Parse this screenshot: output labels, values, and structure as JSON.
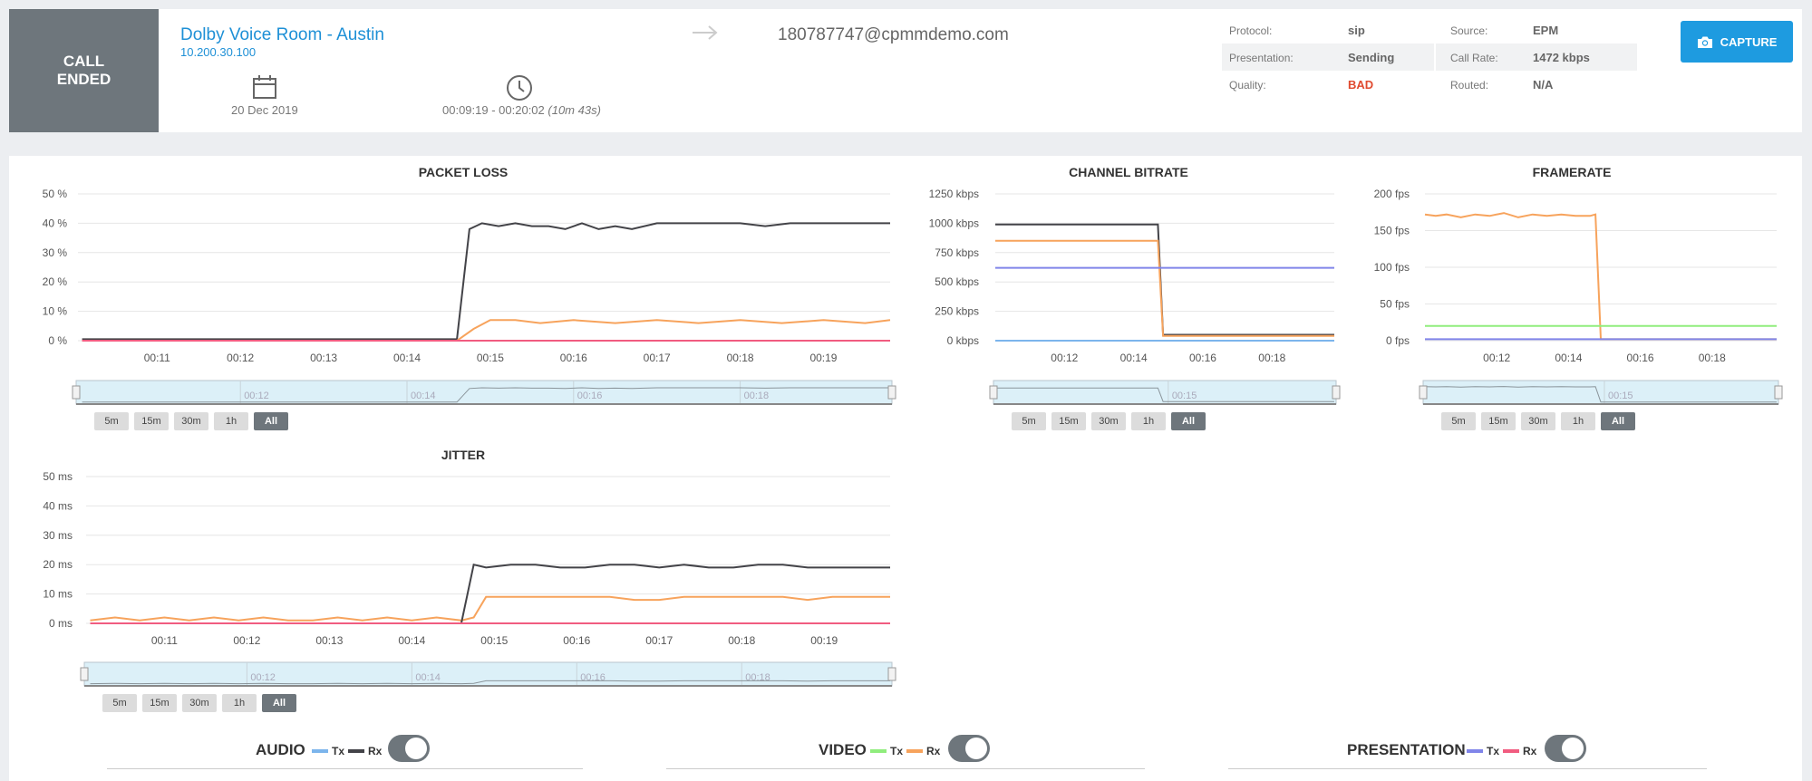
{
  "header": {
    "status_line1": "CALL",
    "status_line2": "ENDED",
    "room_name": "Dolby Voice Room - Austin",
    "room_ip": "10.200.30.100",
    "destination": "180787747@cpmmdemo.com",
    "date": "20 Dec 2019",
    "time_range": "00:09:19 - 00:20:02",
    "duration": "(10m 43s)",
    "capture_label": "CAPTURE"
  },
  "info": {
    "protocol_label": "Protocol:",
    "protocol_value": "sip",
    "source_label": "Source:",
    "source_value": "EPM",
    "presentation_label": "Presentation:",
    "presentation_value": "Sending",
    "callrate_label": "Call Rate:",
    "callrate_value": "1472 kbps",
    "quality_label": "Quality:",
    "quality_value": "BAD",
    "routed_label": "Routed:",
    "routed_value": "N/A"
  },
  "range_buttons": [
    "5m",
    "15m",
    "30m",
    "1h",
    "All"
  ],
  "toggles": {
    "audio": "AUDIO",
    "video": "VIDEO",
    "presentation": "PRESENTATION",
    "tx": "Tx",
    "rx": "Rx"
  },
  "colors": {
    "audio_tx": "#7cb5ec",
    "audio_rx": "#434348",
    "video_tx": "#90ed7d",
    "video_rx": "#f7a35c",
    "pres_tx": "#8085e9",
    "pres_rx": "#f15c80"
  },
  "chart_data": [
    {
      "type": "line",
      "title": "PACKET LOSS",
      "ylim": [
        0,
        50
      ],
      "yticks": [
        "50 %",
        "40 %",
        "30 %",
        "20 %",
        "10 %",
        "0 %"
      ],
      "xticks": [
        "00:11",
        "00:12",
        "00:13",
        "00:14",
        "00:15",
        "00:16",
        "00:17",
        "00:18",
        "00:19"
      ],
      "navigator_ticks": [
        "00:12",
        "00:14",
        "00:16",
        "00:18"
      ],
      "series": [
        {
          "name": "audio_rx",
          "color": "#434348",
          "x": [
            10.1,
            10.5,
            11,
            11.5,
            12,
            12.5,
            13,
            13.5,
            14,
            14.6,
            14.75,
            14.9,
            15.1,
            15.3,
            15.5,
            15.7,
            15.9,
            16.1,
            16.3,
            16.5,
            16.7,
            17,
            17.3,
            17.6,
            18,
            18.3,
            18.6,
            19,
            19.4,
            19.8
          ],
          "values": [
            0.5,
            0.5,
            0.5,
            0.5,
            0.5,
            0.5,
            0.5,
            0.5,
            0.5,
            0.5,
            38,
            40,
            39,
            40,
            39,
            39,
            38,
            40,
            38,
            39,
            38,
            40,
            40,
            40,
            40,
            39,
            40,
            40,
            40,
            40
          ]
        },
        {
          "name": "video_rx",
          "color": "#f7a35c",
          "x": [
            10.1,
            11,
            12,
            13,
            14,
            14.6,
            14.8,
            15,
            15.3,
            15.6,
            16,
            16.5,
            17,
            17.5,
            18,
            18.5,
            19,
            19.5,
            19.8
          ],
          "values": [
            0,
            0,
            0,
            0,
            0,
            0,
            4,
            7,
            7,
            6,
            7,
            6,
            7,
            6,
            7,
            6,
            7,
            6,
            7
          ]
        },
        {
          "name": "pres_rx",
          "color": "#f15c80",
          "x": [
            10.1,
            19.8
          ],
          "values": [
            0,
            0
          ]
        }
      ]
    },
    {
      "type": "line",
      "title": "CHANNEL BITRATE",
      "ylim": [
        0,
        1250
      ],
      "yticks": [
        "1250 kbps",
        "1000 kbps",
        "750 kbps",
        "500 kbps",
        "250 kbps",
        "0 kbps"
      ],
      "xticks": [
        "00:12",
        "00:14",
        "00:16",
        "00:18"
      ],
      "navigator_ticks": [
        "00:15"
      ],
      "series": [
        {
          "name": "audio_rx",
          "color": "#434348",
          "x": [
            10.0,
            14.7,
            14.85,
            19.8
          ],
          "values": [
            990,
            990,
            50,
            50
          ]
        },
        {
          "name": "video_rx",
          "color": "#f7a35c",
          "x": [
            10.0,
            14.7,
            14.85,
            19.8
          ],
          "values": [
            850,
            850,
            40,
            40
          ]
        },
        {
          "name": "pres_tx",
          "color": "#8085e9",
          "x": [
            10.0,
            19.8
          ],
          "values": [
            620,
            620
          ]
        },
        {
          "name": "audio_tx",
          "color": "#7cb5ec",
          "x": [
            10.0,
            19.8
          ],
          "values": [
            0,
            0
          ]
        }
      ]
    },
    {
      "type": "line",
      "title": "FRAMERATE",
      "ylim": [
        0,
        200
      ],
      "yticks": [
        "200 fps",
        "150 fps",
        "100 fps",
        "50 fps",
        "0 fps"
      ],
      "xticks": [
        "00:12",
        "00:14",
        "00:16",
        "00:18"
      ],
      "navigator_ticks": [
        "00:15"
      ],
      "series": [
        {
          "name": "video_rx",
          "color": "#f7a35c",
          "x": [
            10.0,
            10.3,
            10.6,
            11.0,
            11.4,
            11.8,
            12.2,
            12.6,
            13.0,
            13.4,
            13.8,
            14.2,
            14.6,
            14.75,
            14.9,
            19.8
          ],
          "values": [
            172,
            170,
            172,
            168,
            172,
            170,
            174,
            168,
            172,
            170,
            172,
            170,
            170,
            172,
            2,
            2
          ]
        },
        {
          "name": "video_tx",
          "color": "#90ed7d",
          "x": [
            10.0,
            19.8
          ],
          "values": [
            20,
            20
          ]
        },
        {
          "name": "pres_tx",
          "color": "#8085e9",
          "x": [
            10.0,
            19.8
          ],
          "values": [
            2,
            2
          ]
        }
      ]
    },
    {
      "type": "line",
      "title": "JITTER",
      "ylim": [
        0,
        50
      ],
      "yticks": [
        "50 ms",
        "40 ms",
        "30 ms",
        "20 ms",
        "10 ms",
        "0 ms"
      ],
      "xticks": [
        "00:11",
        "00:12",
        "00:13",
        "00:14",
        "00:15",
        "00:16",
        "00:17",
        "00:18",
        "00:19"
      ],
      "navigator_ticks": [
        "00:12",
        "00:14",
        "00:16",
        "00:18"
      ],
      "series": [
        {
          "name": "video_rx",
          "color": "#f7a35c",
          "x": [
            10.1,
            10.4,
            10.7,
            11.0,
            11.3,
            11.6,
            11.9,
            12.2,
            12.5,
            12.8,
            13.1,
            13.4,
            13.7,
            14.0,
            14.3,
            14.6,
            14.75,
            14.9,
            15.2,
            15.5,
            15.8,
            16.1,
            16.4,
            16.7,
            17.0,
            17.3,
            17.6,
            17.9,
            18.2,
            18.5,
            18.8,
            19.1,
            19.4,
            19.8
          ],
          "values": [
            1,
            2,
            1,
            2,
            1,
            2,
            1,
            2,
            1,
            1,
            2,
            1,
            2,
            1,
            2,
            1,
            2,
            9,
            9,
            9,
            9,
            9,
            9,
            8,
            8,
            9,
            9,
            9,
            9,
            9,
            8,
            9,
            9,
            9
          ]
        },
        {
          "name": "audio_rx",
          "color": "#434348",
          "x": [
            10.1,
            11,
            12,
            13,
            14,
            14.6,
            14.75,
            14.9,
            15.2,
            15.5,
            15.8,
            16.1,
            16.4,
            16.7,
            17.0,
            17.3,
            17.6,
            17.9,
            18.2,
            18.5,
            18.8,
            19.1,
            19.4,
            19.8
          ],
          "values": [
            0,
            0,
            0,
            0,
            0,
            0,
            20,
            19,
            20,
            20,
            19,
            19,
            20,
            20,
            19,
            20,
            19,
            19,
            20,
            20,
            19,
            19,
            19,
            19
          ]
        },
        {
          "name": "pres_rx",
          "color": "#f15c80",
          "x": [
            10.1,
            19.8
          ],
          "values": [
            0,
            0
          ]
        }
      ]
    }
  ]
}
